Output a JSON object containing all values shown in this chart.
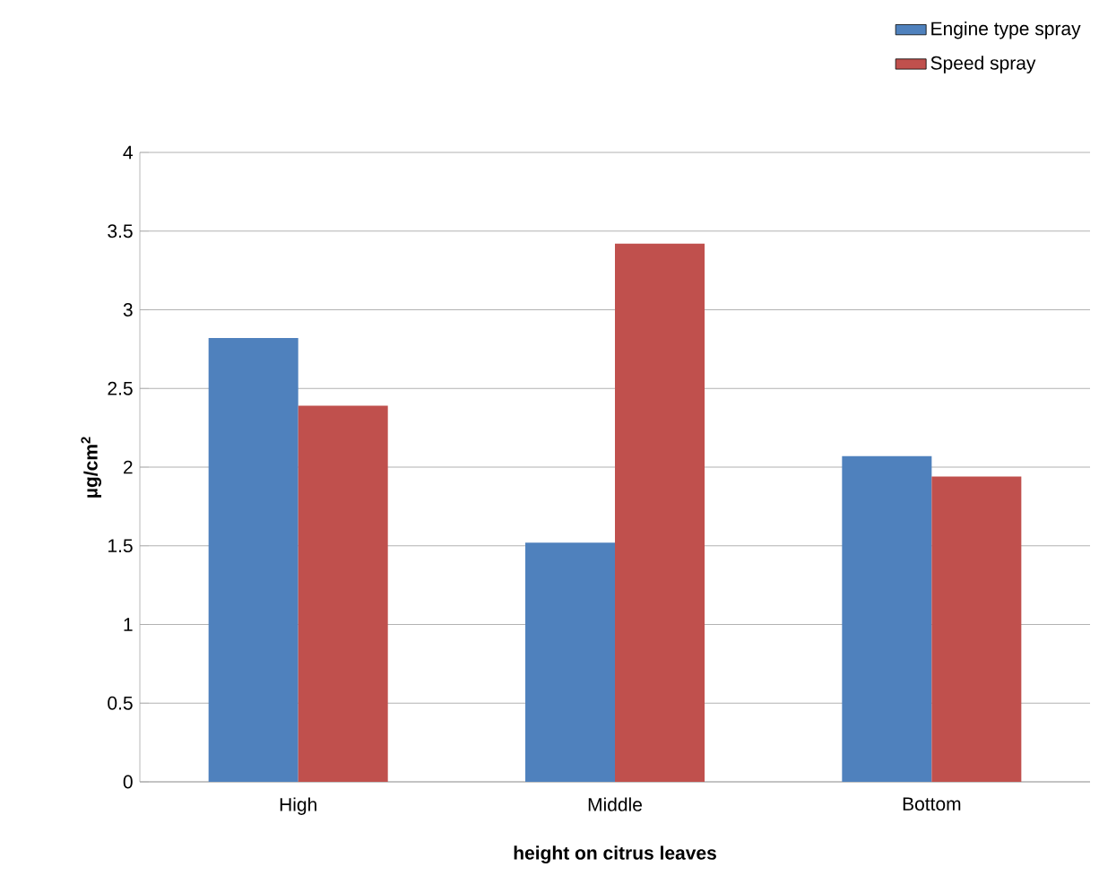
{
  "chart_data": {
    "type": "bar",
    "xlabel": "height on citrus leaves",
    "ylabel": "µg/cm$^{2}$",
    "categories": [
      "High",
      "Middle",
      "Bottom"
    ],
    "series": [
      {
        "name": "Engine type spray",
        "color": "#4f81bd",
        "values": [
          2.82,
          1.52,
          2.07
        ]
      },
      {
        "name": "Speed spray",
        "color": "#c0504d",
        "values": [
          2.39,
          3.42,
          1.94
        ]
      }
    ],
    "ylim": [
      0,
      4
    ],
    "yticks": [
      0,
      0.5,
      1,
      1.5,
      2,
      2.5,
      3,
      3.5,
      4
    ],
    "grid": "y",
    "legend": "top right"
  }
}
